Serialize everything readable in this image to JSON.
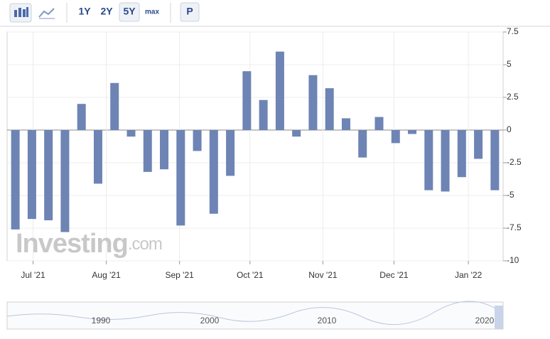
{
  "toolbar": {
    "buttons": [
      "1Y",
      "2Y",
      "5Y",
      "max",
      "P"
    ]
  },
  "watermark": {
    "brand": "Investing",
    "suffix": ".com"
  },
  "chart_data": {
    "type": "bar",
    "color": "#6d84b4",
    "categories": [
      null,
      null,
      null,
      null,
      null,
      null,
      null,
      null,
      null,
      null,
      null,
      null,
      null,
      null,
      null,
      null,
      null,
      null,
      null,
      null,
      null,
      null,
      null,
      null,
      null,
      null,
      null,
      null,
      null,
      null
    ],
    "values": [
      -7.6,
      -6.8,
      -6.9,
      -7.8,
      2.0,
      -4.1,
      3.6,
      -0.5,
      -3.2,
      -3.0,
      -7.3,
      -1.6,
      -6.4,
      -3.5,
      4.5,
      2.3,
      6.0,
      -0.5,
      4.2,
      3.2,
      0.9,
      -2.1,
      1.0,
      -1.0,
      -0.3,
      -4.6,
      -4.7,
      -3.6,
      -2.2,
      -4.6
    ],
    "xlim": [
      -0.5,
      29.5
    ],
    "xticks": [
      {
        "value": 1.07,
        "label": "Jul '21"
      },
      {
        "value": 5.5,
        "label": "Aug '21"
      },
      {
        "value": 9.93,
        "label": "Sep '21"
      },
      {
        "value": 14.19,
        "label": "Oct '21"
      },
      {
        "value": 18.6,
        "label": "Nov '21"
      },
      {
        "value": 22.9,
        "label": "Dec '21"
      },
      {
        "value": 27.4,
        "label": "Jan '22"
      }
    ],
    "ylim": [
      -10,
      7.5
    ],
    "yticks": [
      7.5,
      5,
      2.5,
      0,
      -2.5,
      -5,
      -7.5,
      -10
    ],
    "grid": true
  },
  "navigator": {
    "labels": [
      "1990",
      "2000",
      "2010",
      "2020"
    ]
  }
}
